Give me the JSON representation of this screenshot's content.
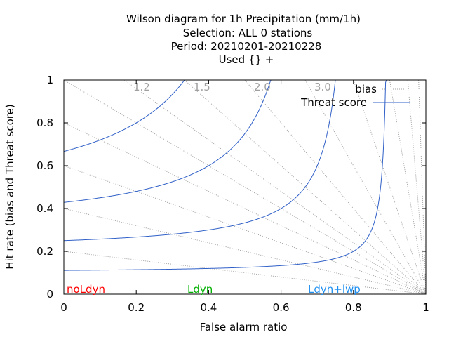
{
  "chart_data": {
    "type": "line",
    "title_lines": [
      "Wilson diagram  for 1h Precipitation (mm/1h)",
      "Selection: ALL      0 stations",
      "Period: 20210201-20210228",
      "Used {} +"
    ],
    "xlabel": "False alarm ratio",
    "ylabel": "Hit rate (bias and Threat score)",
    "xlim": [
      0,
      1
    ],
    "ylim": [
      0,
      1
    ],
    "xticks": [
      "0",
      "0.2",
      "0.4",
      "0.6",
      "0.8",
      "1"
    ],
    "yticks": [
      "0",
      "0.2",
      "0.4",
      "0.6",
      "0.8",
      "1"
    ],
    "legend": {
      "placement": "top-right",
      "entries": [
        {
          "label": "bias",
          "color": "#a0a0a0",
          "style": "dotted"
        },
        {
          "label": "Threat score",
          "color": "#3060c8",
          "style": "solid"
        }
      ]
    },
    "bias_values": [
      0.2,
      0.4,
      0.6,
      0.8,
      1.0,
      1.2,
      1.5,
      2.0,
      3.0,
      5.0,
      10.0,
      20.0,
      50.0
    ],
    "bias_labels": [
      "1.2",
      "1.5",
      "2.0",
      "3.0"
    ],
    "threat_score_values": [
      0.1,
      0.2,
      0.3,
      0.4,
      0.5,
      0.6,
      0.7,
      0.8,
      0.9
    ],
    "experiments": [
      {
        "label": "noLdyn",
        "color": "#ff0000"
      },
      {
        "label": "Ldyn",
        "color": "#00b000"
      },
      {
        "label": "Ldyn+lwp",
        "color": "#2090f0"
      }
    ]
  }
}
